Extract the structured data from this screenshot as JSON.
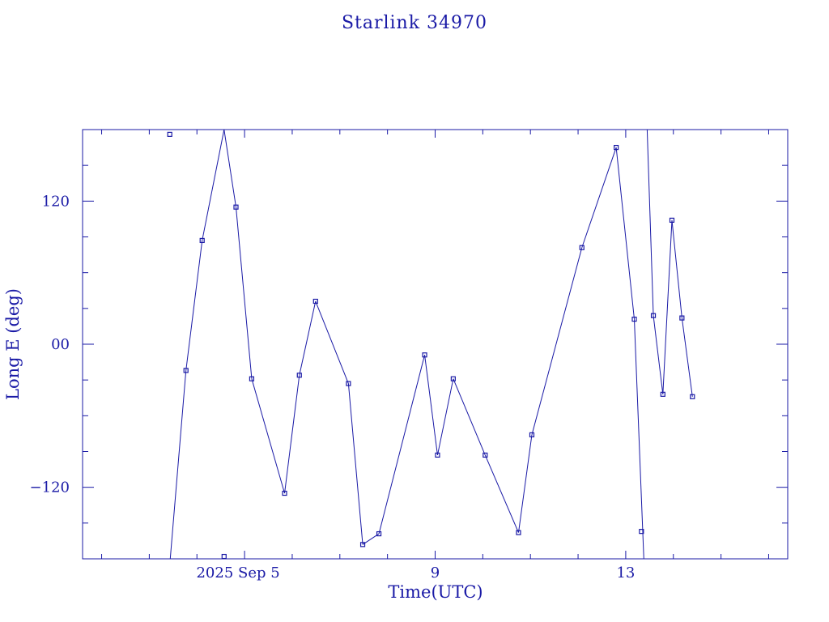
{
  "chart_data": {
    "type": "line",
    "title": "Starlink 34970",
    "xlabel": "Time(UTC)",
    "ylabel": "Long E (deg)",
    "x_unit": "days (September 2025)",
    "xlim": [
      1.6,
      16.4
    ],
    "ylim": [
      -180,
      180
    ],
    "x_ticks": [
      {
        "value": 5,
        "label": "2025 Sep  5"
      },
      {
        "value": 9,
        "label": "9"
      },
      {
        "value": 13,
        "label": "13"
      }
    ],
    "y_ticks": [
      {
        "value": 120,
        "label": "120"
      },
      {
        "value": 0,
        "label": "00"
      },
      {
        "value": -120,
        "label": "−120"
      }
    ],
    "grid": false,
    "marker": "square",
    "color": "#1a1aa6",
    "series": [
      {
        "x": [
          3.43,
          3.77,
          4.11,
          4.57,
          4.82,
          5.15,
          5.84,
          6.15,
          6.49,
          7.18,
          7.48,
          7.82,
          8.78,
          9.05,
          9.38,
          10.05,
          10.75,
          11.03,
          12.08,
          12.8,
          13.18,
          13.33,
          13.58,
          13.78,
          13.97,
          14.18,
          14.4
        ],
        "y": [
          176,
          -22,
          87,
          -178,
          115,
          -29,
          -125,
          -26,
          36,
          -33,
          -168,
          -159,
          -9,
          -93,
          -29,
          -93,
          -158,
          -76,
          81,
          165,
          21,
          -157,
          24,
          -42,
          104,
          22,
          -44
        ]
      }
    ],
    "wrap_segments": [
      {
        "from": [
          3.44,
          -180
        ],
        "to": [
          3.77,
          -22
        ]
      },
      {
        "from": [
          4.11,
          87
        ],
        "to": [
          4.57,
          180
        ]
      },
      {
        "from": [
          4.57,
          180
        ],
        "to": [
          4.82,
          115
        ]
      },
      {
        "from": [
          12.8,
          165
        ],
        "to": [
          13.18,
          21
        ]
      },
      {
        "from": [
          13.18,
          21
        ],
        "to": [
          13.38,
          -180
        ]
      },
      {
        "from": [
          13.45,
          180
        ],
        "to": [
          13.58,
          24
        ]
      },
      {
        "from": [
          13.58,
          24
        ],
        "to": [
          13.78,
          -42
        ]
      },
      {
        "from": [
          13.78,
          -42
        ],
        "to": [
          13.97,
          104
        ]
      },
      {
        "from": [
          13.97,
          104
        ],
        "to": [
          14.18,
          22
        ]
      },
      {
        "from": [
          14.18,
          22
        ],
        "to": [
          14.4,
          -44
        ]
      }
    ]
  }
}
